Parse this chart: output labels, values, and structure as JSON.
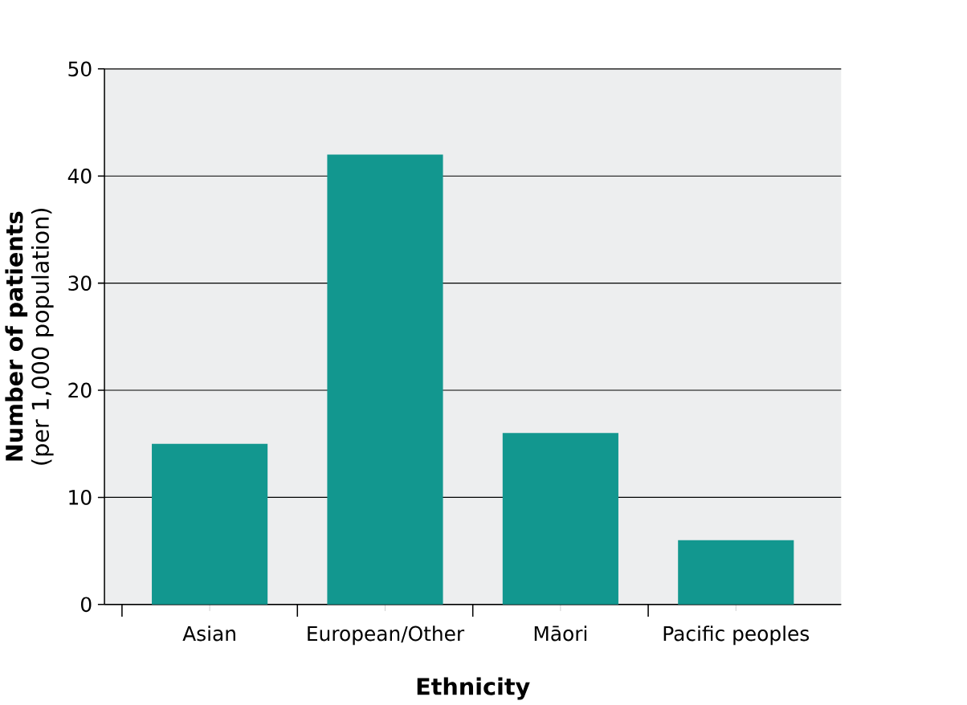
{
  "chart_data": {
    "type": "bar",
    "categories": [
      "Asian",
      "European/Other",
      "Māori",
      "Pacific peoples"
    ],
    "values": [
      15,
      42,
      16,
      6
    ],
    "color": "#12978f",
    "xlabel": "Ethnicity",
    "ylabel": "**Number of patients** (per 1,000 population)",
    "ylim": [
      0,
      50
    ],
    "yticks": [
      0,
      10,
      20,
      30,
      40,
      50
    ],
    "grid": "y"
  }
}
